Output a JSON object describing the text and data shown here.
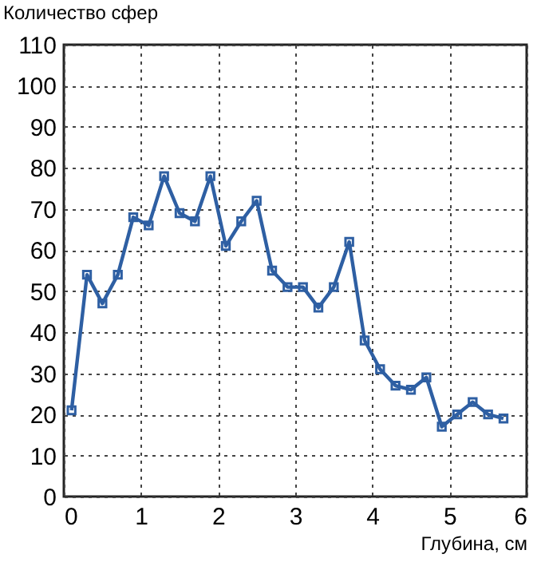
{
  "chart_data": {
    "type": "line",
    "ylabel": "Количество сфер",
    "xlabel": "Глубина, см",
    "x": [
      0.1,
      0.3,
      0.5,
      0.7,
      0.9,
      1.1,
      1.3,
      1.5,
      1.7,
      1.9,
      2.1,
      2.3,
      2.5,
      2.7,
      2.9,
      3.1,
      3.3,
      3.5,
      3.7,
      3.9,
      4.1,
      4.3,
      4.5,
      4.7,
      4.9,
      5.1,
      5.3,
      5.5,
      5.7
    ],
    "series": [
      {
        "color": "#2e5fa3",
        "values": [
          21,
          54,
          47,
          54,
          68,
          66,
          78,
          69,
          67,
          78,
          61,
          67,
          72,
          55,
          51,
          51,
          46,
          51,
          62,
          38,
          31,
          27,
          26,
          29,
          17,
          20,
          23,
          20,
          19
        ]
      }
    ],
    "xlim": [
      0,
      6
    ],
    "xticks": [
      0,
      1,
      2,
      3,
      4,
      5,
      6
    ],
    "ylim": [
      0,
      110
    ],
    "yticks": [
      0,
      10,
      20,
      30,
      40,
      50,
      60,
      70,
      80,
      90,
      100,
      110
    ],
    "grid": true,
    "marker": "square",
    "line_style": "solid"
  }
}
